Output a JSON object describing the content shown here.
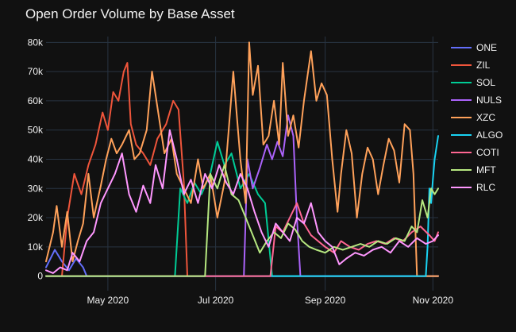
{
  "chart_data": {
    "type": "line",
    "title": "Open Order Volume by Base Asset",
    "xlabel": "",
    "ylabel": "",
    "x_range": [
      "2020-03-27",
      "2020-11-04"
    ],
    "ylim": [
      -5000,
      82000
    ],
    "y_ticks": [
      0,
      10000,
      20000,
      30000,
      40000,
      50000,
      60000,
      70000,
      80000
    ],
    "y_tick_labels": [
      "0",
      "10k",
      "20k",
      "30k",
      "40k",
      "50k",
      "60k",
      "70k",
      "80k"
    ],
    "x_ticks": [
      "2020-05-01",
      "2020-07-01",
      "2020-09-01",
      "2020-11-01"
    ],
    "x_tick_labels": [
      "May 2020",
      "Jul 2020",
      "Sep 2020",
      "Nov 2020"
    ],
    "grid": true,
    "legend_position": "right",
    "series": [
      {
        "name": "ONE",
        "color": "#636efa",
        "points": [
          [
            "2020-03-27",
            3000
          ],
          [
            "2020-04-01",
            9000
          ],
          [
            "2020-04-05",
            5000
          ],
          [
            "2020-04-09",
            2000
          ],
          [
            "2020-04-13",
            6000
          ],
          [
            "2020-04-17",
            3000
          ],
          [
            "2020-04-19",
            0
          ],
          [
            "2020-11-04",
            0
          ]
        ]
      },
      {
        "name": "ZIL",
        "color": "#ef553b",
        "points": [
          [
            "2020-03-27",
            0
          ],
          [
            "2020-04-05",
            0
          ],
          [
            "2020-04-08",
            20000
          ],
          [
            "2020-04-12",
            35000
          ],
          [
            "2020-04-16",
            28000
          ],
          [
            "2020-04-20",
            38000
          ],
          [
            "2020-04-24",
            45000
          ],
          [
            "2020-04-28",
            56000
          ],
          [
            "2020-05-01",
            50000
          ],
          [
            "2020-05-04",
            63000
          ],
          [
            "2020-05-07",
            60000
          ],
          [
            "2020-05-10",
            70000
          ],
          [
            "2020-05-12",
            73000
          ],
          [
            "2020-05-14",
            52000
          ],
          [
            "2020-05-17",
            45000
          ],
          [
            "2020-05-21",
            42000
          ],
          [
            "2020-05-25",
            38000
          ],
          [
            "2020-05-29",
            47000
          ],
          [
            "2020-06-03",
            52000
          ],
          [
            "2020-06-07",
            60000
          ],
          [
            "2020-06-10",
            57000
          ],
          [
            "2020-06-13",
            32000
          ],
          [
            "2020-06-15",
            0
          ],
          [
            "2020-11-04",
            0
          ]
        ]
      },
      {
        "name": "SOL",
        "color": "#00cc96",
        "points": [
          [
            "2020-03-27",
            0
          ],
          [
            "2020-06-08",
            0
          ],
          [
            "2020-06-11",
            30000
          ],
          [
            "2020-06-15",
            25000
          ],
          [
            "2020-06-19",
            32000
          ],
          [
            "2020-06-23",
            28000
          ],
          [
            "2020-06-28",
            35000
          ],
          [
            "2020-07-02",
            46000
          ],
          [
            "2020-07-06",
            38000
          ],
          [
            "2020-07-10",
            42000
          ],
          [
            "2020-07-15",
            30000
          ],
          [
            "2020-07-20",
            35000
          ],
          [
            "2020-07-25",
            28000
          ],
          [
            "2020-07-29",
            25000
          ],
          [
            "2020-08-02",
            0
          ],
          [
            "2020-11-04",
            0
          ]
        ]
      },
      {
        "name": "NULS",
        "color": "#ab63fa",
        "points": [
          [
            "2020-03-27",
            0
          ],
          [
            "2020-07-17",
            0
          ],
          [
            "2020-07-19",
            40000
          ],
          [
            "2020-07-22",
            30000
          ],
          [
            "2020-07-26",
            37000
          ],
          [
            "2020-07-30",
            45000
          ],
          [
            "2020-08-02",
            40000
          ],
          [
            "2020-08-05",
            46000
          ],
          [
            "2020-08-08",
            41000
          ],
          [
            "2020-08-11",
            55000
          ],
          [
            "2020-08-14",
            48000
          ],
          [
            "2020-08-16",
            20000
          ],
          [
            "2020-08-18",
            0
          ],
          [
            "2020-11-04",
            0
          ]
        ]
      },
      {
        "name": "XZC",
        "color": "#ffa15a",
        "points": [
          [
            "2020-03-27",
            5000
          ],
          [
            "2020-03-31",
            15000
          ],
          [
            "2020-04-02",
            24000
          ],
          [
            "2020-04-05",
            10000
          ],
          [
            "2020-04-08",
            22000
          ],
          [
            "2020-04-11",
            5000
          ],
          [
            "2020-04-14",
            12000
          ],
          [
            "2020-04-17",
            18000
          ],
          [
            "2020-04-20",
            35000
          ],
          [
            "2020-04-23",
            20000
          ],
          [
            "2020-04-27",
            31000
          ],
          [
            "2020-04-30",
            40000
          ],
          [
            "2020-05-03",
            47000
          ],
          [
            "2020-05-06",
            42000
          ],
          [
            "2020-05-09",
            45000
          ],
          [
            "2020-05-13",
            50000
          ],
          [
            "2020-05-16",
            40000
          ],
          [
            "2020-05-19",
            42000
          ],
          [
            "2020-05-23",
            50000
          ],
          [
            "2020-05-26",
            70000
          ],
          [
            "2020-05-29",
            58000
          ],
          [
            "2020-06-02",
            42000
          ],
          [
            "2020-06-06",
            47000
          ],
          [
            "2020-06-09",
            35000
          ],
          [
            "2020-06-13",
            30000
          ],
          [
            "2020-06-17",
            25000
          ],
          [
            "2020-06-21",
            40000
          ],
          [
            "2020-06-24",
            30000
          ],
          [
            "2020-06-28",
            35000
          ],
          [
            "2020-07-02",
            20000
          ],
          [
            "2020-07-06",
            32000
          ],
          [
            "2020-07-08",
            47000
          ],
          [
            "2020-07-11",
            70000
          ],
          [
            "2020-07-13",
            55000
          ],
          [
            "2020-07-15",
            40000
          ],
          [
            "2020-07-18",
            25000
          ],
          [
            "2020-07-20",
            80000
          ],
          [
            "2020-07-22",
            62000
          ],
          [
            "2020-07-25",
            72000
          ],
          [
            "2020-07-28",
            45000
          ],
          [
            "2020-07-31",
            48000
          ],
          [
            "2020-08-03",
            60000
          ],
          [
            "2020-08-06",
            45000
          ],
          [
            "2020-08-08",
            73000
          ],
          [
            "2020-08-11",
            48000
          ],
          [
            "2020-08-14",
            55000
          ],
          [
            "2020-08-17",
            44000
          ],
          [
            "2020-08-20",
            60000
          ],
          [
            "2020-08-24",
            77000
          ],
          [
            "2020-08-27",
            60000
          ],
          [
            "2020-08-30",
            66000
          ],
          [
            "2020-09-02",
            62000
          ],
          [
            "2020-09-05",
            40000
          ],
          [
            "2020-09-08",
            22000
          ],
          [
            "2020-09-10",
            35000
          ],
          [
            "2020-09-13",
            50000
          ],
          [
            "2020-09-16",
            42000
          ],
          [
            "2020-09-19",
            20000
          ],
          [
            "2020-09-22",
            35000
          ],
          [
            "2020-09-25",
            44000
          ],
          [
            "2020-09-28",
            40000
          ],
          [
            "2020-10-01",
            28000
          ],
          [
            "2020-10-04",
            38000
          ],
          [
            "2020-10-07",
            47000
          ],
          [
            "2020-10-10",
            43000
          ],
          [
            "2020-10-13",
            32000
          ],
          [
            "2020-10-16",
            52000
          ],
          [
            "2020-10-19",
            50000
          ],
          [
            "2020-10-21",
            35000
          ],
          [
            "2020-10-23",
            0
          ],
          [
            "2020-11-04",
            0
          ]
        ]
      },
      {
        "name": "ALGO",
        "color": "#19d3f3",
        "points": [
          [
            "2020-03-27",
            0
          ],
          [
            "2020-10-28",
            0
          ],
          [
            "2020-10-29",
            10000
          ],
          [
            "2020-10-30",
            30000
          ],
          [
            "2020-10-31",
            25000
          ],
          [
            "2020-11-01",
            33000
          ],
          [
            "2020-11-02",
            40000
          ],
          [
            "2020-11-04",
            48000
          ]
        ]
      },
      {
        "name": "COTI",
        "color": "#ff6692",
        "points": [
          [
            "2020-03-27",
            0
          ],
          [
            "2020-08-01",
            0
          ],
          [
            "2020-08-04",
            17000
          ],
          [
            "2020-08-08",
            15000
          ],
          [
            "2020-08-12",
            20000
          ],
          [
            "2020-08-16",
            25000
          ],
          [
            "2020-08-20",
            18000
          ],
          [
            "2020-08-24",
            14000
          ],
          [
            "2020-08-28",
            12000
          ],
          [
            "2020-09-01",
            10000
          ],
          [
            "2020-09-06",
            8000
          ],
          [
            "2020-09-10",
            12000
          ],
          [
            "2020-09-15",
            10000
          ],
          [
            "2020-09-20",
            9000
          ],
          [
            "2020-09-25",
            11000
          ],
          [
            "2020-09-30",
            12000
          ],
          [
            "2020-10-05",
            11000
          ],
          [
            "2020-10-10",
            13000
          ],
          [
            "2020-10-15",
            12000
          ],
          [
            "2020-10-20",
            15000
          ],
          [
            "2020-10-25",
            17000
          ],
          [
            "2020-10-30",
            14000
          ],
          [
            "2020-11-02",
            12000
          ],
          [
            "2020-11-04",
            15000
          ]
        ]
      },
      {
        "name": "MFT",
        "color": "#b6e880",
        "points": [
          [
            "2020-03-27",
            0
          ],
          [
            "2020-06-25",
            0
          ],
          [
            "2020-06-28",
            35000
          ],
          [
            "2020-07-02",
            30000
          ],
          [
            "2020-07-06",
            38000
          ],
          [
            "2020-07-10",
            28000
          ],
          [
            "2020-07-14",
            26000
          ],
          [
            "2020-07-18",
            20000
          ],
          [
            "2020-07-22",
            14000
          ],
          [
            "2020-07-26",
            8000
          ],
          [
            "2020-07-30",
            12000
          ],
          [
            "2020-08-03",
            15000
          ],
          [
            "2020-08-07",
            13000
          ],
          [
            "2020-08-11",
            18000
          ],
          [
            "2020-08-15",
            16000
          ],
          [
            "2020-08-19",
            12000
          ],
          [
            "2020-08-23",
            10000
          ],
          [
            "2020-08-27",
            9000
          ],
          [
            "2020-09-01",
            8000
          ],
          [
            "2020-09-06",
            10000
          ],
          [
            "2020-09-11",
            9000
          ],
          [
            "2020-09-16",
            10000
          ],
          [
            "2020-09-21",
            11000
          ],
          [
            "2020-09-26",
            10000
          ],
          [
            "2020-10-01",
            12000
          ],
          [
            "2020-10-06",
            11000
          ],
          [
            "2020-10-11",
            13000
          ],
          [
            "2020-10-16",
            12000
          ],
          [
            "2020-10-20",
            17000
          ],
          [
            "2020-10-23",
            15000
          ],
          [
            "2020-10-26",
            26000
          ],
          [
            "2020-10-29",
            20000
          ],
          [
            "2020-10-31",
            30000
          ],
          [
            "2020-11-02",
            28000
          ],
          [
            "2020-11-04",
            30000
          ]
        ]
      },
      {
        "name": "RLC",
        "color": "#ff97ff",
        "points": [
          [
            "2020-03-27",
            2000
          ],
          [
            "2020-03-31",
            1000
          ],
          [
            "2020-04-04",
            3000
          ],
          [
            "2020-04-08",
            2000
          ],
          [
            "2020-04-11",
            8000
          ],
          [
            "2020-04-15",
            5000
          ],
          [
            "2020-04-19",
            12000
          ],
          [
            "2020-04-23",
            15000
          ],
          [
            "2020-04-27",
            25000
          ],
          [
            "2020-05-01",
            30000
          ],
          [
            "2020-05-05",
            35000
          ],
          [
            "2020-05-09",
            42000
          ],
          [
            "2020-05-13",
            28000
          ],
          [
            "2020-05-17",
            22000
          ],
          [
            "2020-05-21",
            31000
          ],
          [
            "2020-05-25",
            25000
          ],
          [
            "2020-05-28",
            38000
          ],
          [
            "2020-06-01",
            30000
          ],
          [
            "2020-06-05",
            50000
          ],
          [
            "2020-06-09",
            40000
          ],
          [
            "2020-06-13",
            28000
          ],
          [
            "2020-06-17",
            33000
          ],
          [
            "2020-06-21",
            25000
          ],
          [
            "2020-06-25",
            35000
          ],
          [
            "2020-06-29",
            30000
          ],
          [
            "2020-07-03",
            38000
          ],
          [
            "2020-07-07",
            32000
          ],
          [
            "2020-07-11",
            28000
          ],
          [
            "2020-07-15",
            35000
          ],
          [
            "2020-07-19",
            30000
          ],
          [
            "2020-07-23",
            22000
          ],
          [
            "2020-07-27",
            15000
          ],
          [
            "2020-07-31",
            10000
          ],
          [
            "2020-08-04",
            18000
          ],
          [
            "2020-08-08",
            15000
          ],
          [
            "2020-08-12",
            12000
          ],
          [
            "2020-08-16",
            20000
          ],
          [
            "2020-08-20",
            18000
          ],
          [
            "2020-08-24",
            25000
          ],
          [
            "2020-08-28",
            15000
          ],
          [
            "2020-09-01",
            12000
          ],
          [
            "2020-09-05",
            10000
          ],
          [
            "2020-09-09",
            4000
          ],
          [
            "2020-09-13",
            6000
          ],
          [
            "2020-09-18",
            8000
          ],
          [
            "2020-09-23",
            7000
          ],
          [
            "2020-09-28",
            9000
          ],
          [
            "2020-10-03",
            10000
          ],
          [
            "2020-10-08",
            8000
          ],
          [
            "2020-10-13",
            12000
          ],
          [
            "2020-10-18",
            10000
          ],
          [
            "2020-10-23",
            13000
          ],
          [
            "2020-10-28",
            11000
          ],
          [
            "2020-11-01",
            12000
          ],
          [
            "2020-11-04",
            14000
          ]
        ]
      }
    ]
  }
}
